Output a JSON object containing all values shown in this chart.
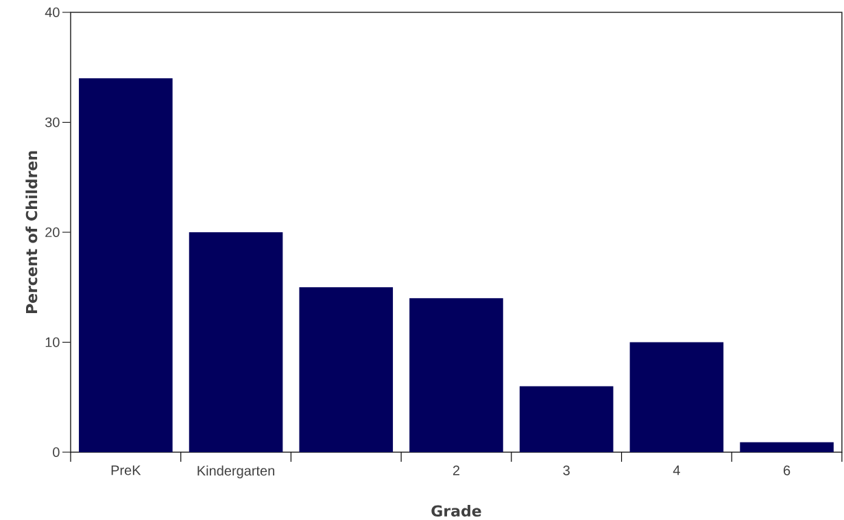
{
  "chart_data": {
    "type": "bar",
    "xlabel": "Grade",
    "ylabel": "Percent of Children",
    "categories": [
      "PreK",
      "Kindergarten",
      null,
      "2",
      "3",
      "4",
      "6"
    ],
    "values": [
      34,
      20,
      15,
      14,
      6,
      10,
      0.9
    ],
    "color": "#02005e",
    "ylim": [
      0,
      40
    ],
    "yticks": [
      0,
      10,
      20,
      30,
      40
    ]
  }
}
